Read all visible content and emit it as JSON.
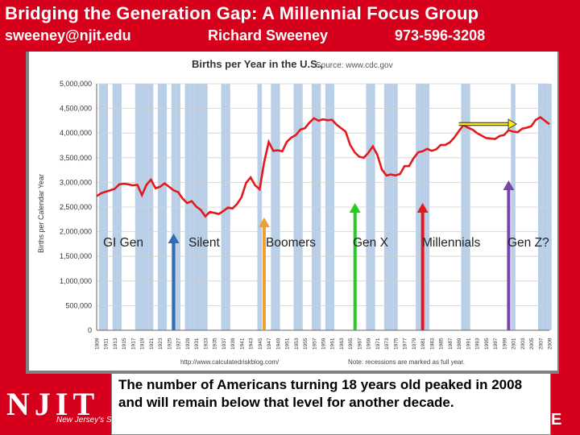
{
  "header": {
    "title": "Bridging the Generation Gap: A Millennial Focus Group",
    "email": "sweeney@njit.edu",
    "name": "Richard Sweeney",
    "phone": "973-596-3208"
  },
  "branding": {
    "logo": "NJIT",
    "tagline": "New Jersey's S",
    "edge_letter": "E"
  },
  "caption": "The number of  Americans turning 18 years old peaked in 2008 and will remain below that level for another decade.",
  "colors": {
    "brand_red": "#d6001c",
    "line": "#e31a1c",
    "recession_band": "#b9cfe8"
  },
  "generation_labels": [
    {
      "label": "GI Gen"
    },
    {
      "label": "Silent"
    },
    {
      "label": "Boomers"
    },
    {
      "label": "Gen X"
    },
    {
      "label": "Millennials"
    },
    {
      "label": "Gen Z?"
    }
  ],
  "chart_data": {
    "type": "line",
    "title": "Births per Year in the U.S.,",
    "source": "Source: www.cdc.gov",
    "ylabel": "Births per Calendar Year",
    "xlabel": "",
    "ylim": [
      0,
      5000000
    ],
    "xlim": [
      1909,
      2009
    ],
    "footnote_left": "http://www.calculatedriskblog.com/",
    "footnote_right": "Note: recessions are marked as full year.",
    "y_ticks": [
      "0",
      "500,000",
      "1,000,000",
      "1,500,000",
      "2,000,000",
      "2,500,000",
      "3,000,000",
      "3,500,000",
      "4,000,000",
      "4,500,000",
      "5,000,000"
    ],
    "x_tick_labels": [
      "1909",
      "1911",
      "1913",
      "1915",
      "1917",
      "1919",
      "1921",
      "1923",
      "1925",
      "1927",
      "1929",
      "1931",
      "1933",
      "1935",
      "1937",
      "1939",
      "1941",
      "1943",
      "1945",
      "1947",
      "1949",
      "1951",
      "1953",
      "1955",
      "1957",
      "1959",
      "1961",
      "1963",
      "1965",
      "1967",
      "1969",
      "1971",
      "1973",
      "1975",
      "1977",
      "1979",
      "1981",
      "1983",
      "1985",
      "1987",
      "1989",
      "1991",
      "1993",
      "1995",
      "1997",
      "1999",
      "2001",
      "2003",
      "2005",
      "2007",
      "2009"
    ],
    "series": [
      {
        "name": "Births",
        "x": [
          1909,
          1910,
          1911,
          1912,
          1913,
          1914,
          1915,
          1916,
          1917,
          1918,
          1919,
          1920,
          1921,
          1922,
          1923,
          1924,
          1925,
          1926,
          1927,
          1928,
          1929,
          1930,
          1931,
          1932,
          1933,
          1934,
          1935,
          1936,
          1937,
          1938,
          1939,
          1940,
          1941,
          1942,
          1943,
          1944,
          1945,
          1946,
          1947,
          1948,
          1949,
          1950,
          1951,
          1952,
          1953,
          1954,
          1955,
          1956,
          1957,
          1958,
          1959,
          1960,
          1961,
          1962,
          1963,
          1964,
          1965,
          1966,
          1967,
          1968,
          1969,
          1970,
          1971,
          1972,
          1973,
          1974,
          1975,
          1976,
          1977,
          1978,
          1979,
          1980,
          1981,
          1982,
          1983,
          1984,
          1985,
          1986,
          1987,
          1988,
          1989,
          1990,
          1991,
          1992,
          1993,
          1994,
          1995,
          1996,
          1997,
          1998,
          1999,
          2000,
          2001,
          2002,
          2003,
          2004,
          2005,
          2006,
          2007,
          2008,
          2009
        ],
        "values": [
          2720000,
          2780000,
          2810000,
          2840000,
          2870000,
          2960000,
          2970000,
          2960000,
          2940000,
          2950000,
          2740000,
          2950000,
          3055000,
          2880000,
          2910000,
          2980000,
          2910000,
          2840000,
          2800000,
          2670000,
          2580000,
          2620000,
          2510000,
          2440000,
          2310000,
          2400000,
          2380000,
          2360000,
          2420000,
          2490000,
          2470000,
          2560000,
          2700000,
          2990000,
          3100000,
          2940000,
          2860000,
          3410000,
          3820000,
          3640000,
          3650000,
          3630000,
          3820000,
          3910000,
          3960000,
          4070000,
          4100000,
          4210000,
          4300000,
          4250000,
          4280000,
          4260000,
          4270000,
          4170000,
          4100000,
          4030000,
          3760000,
          3610000,
          3520000,
          3500000,
          3600000,
          3730000,
          3560000,
          3260000,
          3140000,
          3160000,
          3140000,
          3170000,
          3330000,
          3330000,
          3490000,
          3610000,
          3630000,
          3680000,
          3640000,
          3670000,
          3760000,
          3760000,
          3810000,
          3910000,
          4040000,
          4160000,
          4110000,
          4070000,
          4000000,
          3950000,
          3900000,
          3890000,
          3880000,
          3940000,
          3960000,
          4060000,
          4030000,
          4020000,
          4090000,
          4110000,
          4140000,
          4270000,
          4320000,
          4250000,
          4180000
        ]
      }
    ],
    "recession_years": [
      1910,
      1911,
      1913,
      1914,
      1918,
      1919,
      1920,
      1921,
      1923,
      1924,
      1926,
      1927,
      1929,
      1930,
      1931,
      1932,
      1933,
      1937,
      1938,
      1945,
      1948,
      1949,
      1953,
      1954,
      1957,
      1958,
      1960,
      1961,
      1969,
      1970,
      1973,
      1974,
      1975,
      1980,
      1981,
      1982,
      1990,
      1991,
      2001,
      2007,
      2008,
      2009
    ],
    "annotations": {
      "generation_arrows": [
        {
          "label": "GI Gen",
          "year": 1926,
          "color": "#2f6cb5"
        },
        {
          "label": "Silent",
          "year": 1926,
          "color": "#2f6cb5"
        },
        {
          "label": "Boomers",
          "year": 1946,
          "color": "#f0a030"
        },
        {
          "label": "Gen X",
          "year": 1965,
          "color": "#22cc22"
        },
        {
          "label": "Millennials",
          "year": 1981,
          "color": "#e31a1c"
        },
        {
          "label": "Gen Z?",
          "year": 2000,
          "color": "#7744aa"
        }
      ],
      "peak_arrow": {
        "from_year": 1989,
        "to_year": 2001,
        "color": "#ffee00"
      }
    }
  }
}
